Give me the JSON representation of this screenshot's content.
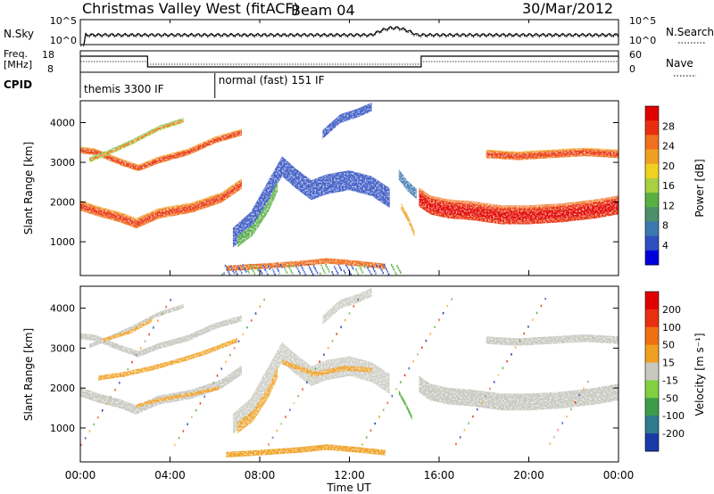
{
  "header": {
    "title": "Christmas Valley West (fitACF)",
    "beam": "Beam 04",
    "date": "30/Mar/2012"
  },
  "top_panels": {
    "nsky_label": "N.Sky",
    "nsky_ticks": [
      "10^5",
      "10^0"
    ],
    "nsearch_label": "N.Search",
    "nsearch_ticks": [
      "10^5",
      "10^0"
    ],
    "freq_label_line1": "Freq.",
    "freq_label_line2": "[MHz]",
    "freq_ticks": [
      "18",
      "8"
    ],
    "nave_label": "Nave",
    "nave_ticks": [
      "60",
      "0"
    ],
    "cpid_label": "CPID",
    "cpid_segments": [
      {
        "label": "themis 3300 IF",
        "start_hour": 0,
        "end_hour": 6
      },
      {
        "label": "normal (fast) 151 IF",
        "start_hour": 6,
        "end_hour": 24
      }
    ]
  },
  "chart_data": [
    {
      "type": "heatmap",
      "name": "power",
      "ylabel": "Slant Range [km]",
      "yticks": [
        1000,
        2000,
        3000,
        4000
      ],
      "ylim": [
        150,
        4550
      ],
      "xlim": [
        0,
        24
      ],
      "colorbar": {
        "label": "Power [dB]",
        "ticks": [
          4,
          8,
          12,
          16,
          20,
          24,
          28
        ],
        "colors": [
          "#0000dd",
          "#2f4fc0",
          "#3c78b0",
          "#4c8f6a",
          "#58b040",
          "#a8d040",
          "#f0d020",
          "#f0a020",
          "#f07020",
          "#e83010",
          "#e00000"
        ]
      },
      "bands": [
        {
          "points": [
            [
              0,
              1900
            ],
            [
              0.8,
              1750
            ],
            [
              1.8,
              1600
            ],
            [
              2.5,
              1450
            ],
            [
              3.5,
              1700
            ],
            [
              5,
              1850
            ],
            [
              6.3,
              2100
            ],
            [
              7.2,
              2450
            ]
          ],
          "width": 230
        },
        {
          "points": [
            [
              0,
              3300
            ],
            [
              0.7,
              3250
            ],
            [
              1.8,
              3000
            ],
            [
              2.6,
              2850
            ],
            [
              3.5,
              3050
            ],
            [
              4.8,
              3250
            ],
            [
              6,
              3550
            ],
            [
              7.2,
              3750
            ]
          ],
          "width": 150
        },
        {
          "points": [
            [
              0.4,
              3050
            ],
            [
              1.3,
              3250
            ],
            [
              2.3,
              3500
            ],
            [
              3.5,
              3850
            ],
            [
              4.6,
              4050
            ]
          ],
          "width": 110
        },
        {
          "points": [
            [
              15.1,
              2100
            ],
            [
              15.6,
              1900
            ],
            [
              16.4,
              1800
            ],
            [
              17.5,
              1750
            ],
            [
              18.8,
              1650
            ],
            [
              20,
              1650
            ],
            [
              21.5,
              1700
            ],
            [
              23,
              1800
            ],
            [
              24,
              1900
            ]
          ],
          "width": 420
        },
        {
          "points": [
            [
              18.1,
              3200
            ],
            [
              19.5,
              3150
            ],
            [
              21,
              3200
            ],
            [
              22.5,
              3250
            ],
            [
              24,
              3200
            ]
          ],
          "width": 190
        }
      ],
      "low_band": {
        "points": [
          [
            6.5,
            330
          ],
          [
            8,
            380
          ],
          [
            9.8,
            450
          ],
          [
            11,
            520
          ],
          [
            12.4,
            450
          ],
          [
            13.6,
            380
          ]
        ],
        "width": 140
      }
    },
    {
      "type": "heatmap",
      "name": "velocity",
      "xlabel": "Time UT",
      "ylabel": "Slant Range [km]",
      "xticks": [
        "00:00",
        "04:00",
        "08:00",
        "12:00",
        "16:00",
        "20:00",
        "00:00"
      ],
      "yticks": [
        1000,
        2000,
        3000,
        4000
      ],
      "ylim": [
        150,
        4550
      ],
      "xlim": [
        0,
        24
      ],
      "colorbar": {
        "label": "Velocity [m s⁻¹]",
        "ticks": [
          200,
          100,
          50,
          15,
          -15,
          -50,
          -100,
          -200
        ],
        "colors": [
          "#1a3aa8",
          "#2e7a8e",
          "#3c9c4a",
          "#80d040",
          "#c8c8c0",
          "#f0a020",
          "#f07010",
          "#e83010",
          "#e00000"
        ]
      },
      "green_streak": {
        "points": [
          [
            14.2,
            1900
          ],
          [
            14.5,
            1600
          ],
          [
            14.8,
            1250
          ]
        ],
        "width": 110
      }
    }
  ],
  "colors": {
    "grey_velocity": "#c8c8c0",
    "orange_velocity": "#f0a020",
    "blue_scatter": "#2f4fc0"
  }
}
